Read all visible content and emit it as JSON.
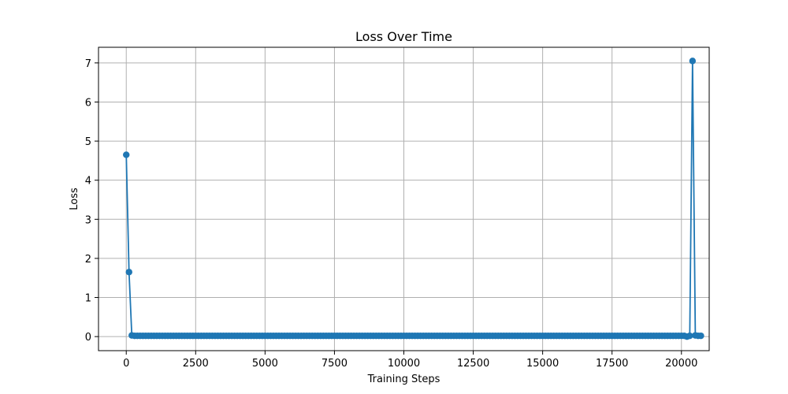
{
  "chart_data": {
    "type": "line",
    "title": "Loss Over Time",
    "xlabel": "Training Steps",
    "ylabel": "Loss",
    "xlim": [
      -1000,
      21000
    ],
    "ylim": [
      -0.36,
      7.4
    ],
    "xticks": [
      0,
      2500,
      5000,
      7500,
      10000,
      12500,
      15000,
      17500,
      20000
    ],
    "yticks": [
      0,
      1,
      2,
      3,
      4,
      5,
      6,
      7
    ],
    "grid": true,
    "color": "#1f77b4",
    "series": [
      {
        "marker": "circle",
        "x_start": 0,
        "x_step": 100,
        "values": [
          4.65,
          1.65,
          0.03,
          0.02,
          0.02,
          0.02,
          0.02,
          0.02,
          0.02,
          0.02,
          0.02,
          0.02,
          0.02,
          0.02,
          0.02,
          0.02,
          0.02,
          0.02,
          0.02,
          0.02,
          0.02,
          0.02,
          0.02,
          0.02,
          0.02,
          0.02,
          0.02,
          0.02,
          0.02,
          0.02,
          0.02,
          0.02,
          0.02,
          0.02,
          0.02,
          0.02,
          0.02,
          0.02,
          0.02,
          0.02,
          0.02,
          0.02,
          0.02,
          0.02,
          0.02,
          0.02,
          0.02,
          0.02,
          0.02,
          0.02,
          0.02,
          0.02,
          0.02,
          0.02,
          0.02,
          0.02,
          0.02,
          0.02,
          0.02,
          0.02,
          0.02,
          0.02,
          0.02,
          0.02,
          0.02,
          0.02,
          0.02,
          0.02,
          0.02,
          0.02,
          0.02,
          0.02,
          0.02,
          0.02,
          0.02,
          0.02,
          0.02,
          0.02,
          0.02,
          0.02,
          0.02,
          0.02,
          0.02,
          0.02,
          0.02,
          0.02,
          0.02,
          0.02,
          0.02,
          0.02,
          0.02,
          0.02,
          0.02,
          0.02,
          0.02,
          0.02,
          0.02,
          0.02,
          0.02,
          0.02,
          0.02,
          0.02,
          0.02,
          0.02,
          0.02,
          0.02,
          0.02,
          0.02,
          0.02,
          0.02,
          0.02,
          0.02,
          0.02,
          0.02,
          0.02,
          0.02,
          0.02,
          0.02,
          0.02,
          0.02,
          0.02,
          0.02,
          0.02,
          0.02,
          0.02,
          0.02,
          0.02,
          0.02,
          0.02,
          0.02,
          0.02,
          0.02,
          0.02,
          0.02,
          0.02,
          0.02,
          0.02,
          0.02,
          0.02,
          0.02,
          0.02,
          0.02,
          0.02,
          0.02,
          0.02,
          0.02,
          0.02,
          0.02,
          0.02,
          0.02,
          0.02,
          0.02,
          0.02,
          0.02,
          0.02,
          0.02,
          0.02,
          0.02,
          0.02,
          0.02,
          0.02,
          0.02,
          0.02,
          0.02,
          0.02,
          0.02,
          0.02,
          0.02,
          0.02,
          0.02,
          0.02,
          0.02,
          0.02,
          0.02,
          0.02,
          0.02,
          0.02,
          0.02,
          0.02,
          0.02,
          0.02,
          0.02,
          0.02,
          0.02,
          0.02,
          0.02,
          0.02,
          0.02,
          0.02,
          0.02,
          0.02,
          0.02,
          0.02,
          0.02,
          0.02,
          0.02,
          0.02,
          0.02,
          0.02,
          0.02,
          0.02,
          0.02,
          0.0,
          0.02,
          7.05,
          0.03,
          0.02,
          0.02
        ]
      }
    ]
  }
}
